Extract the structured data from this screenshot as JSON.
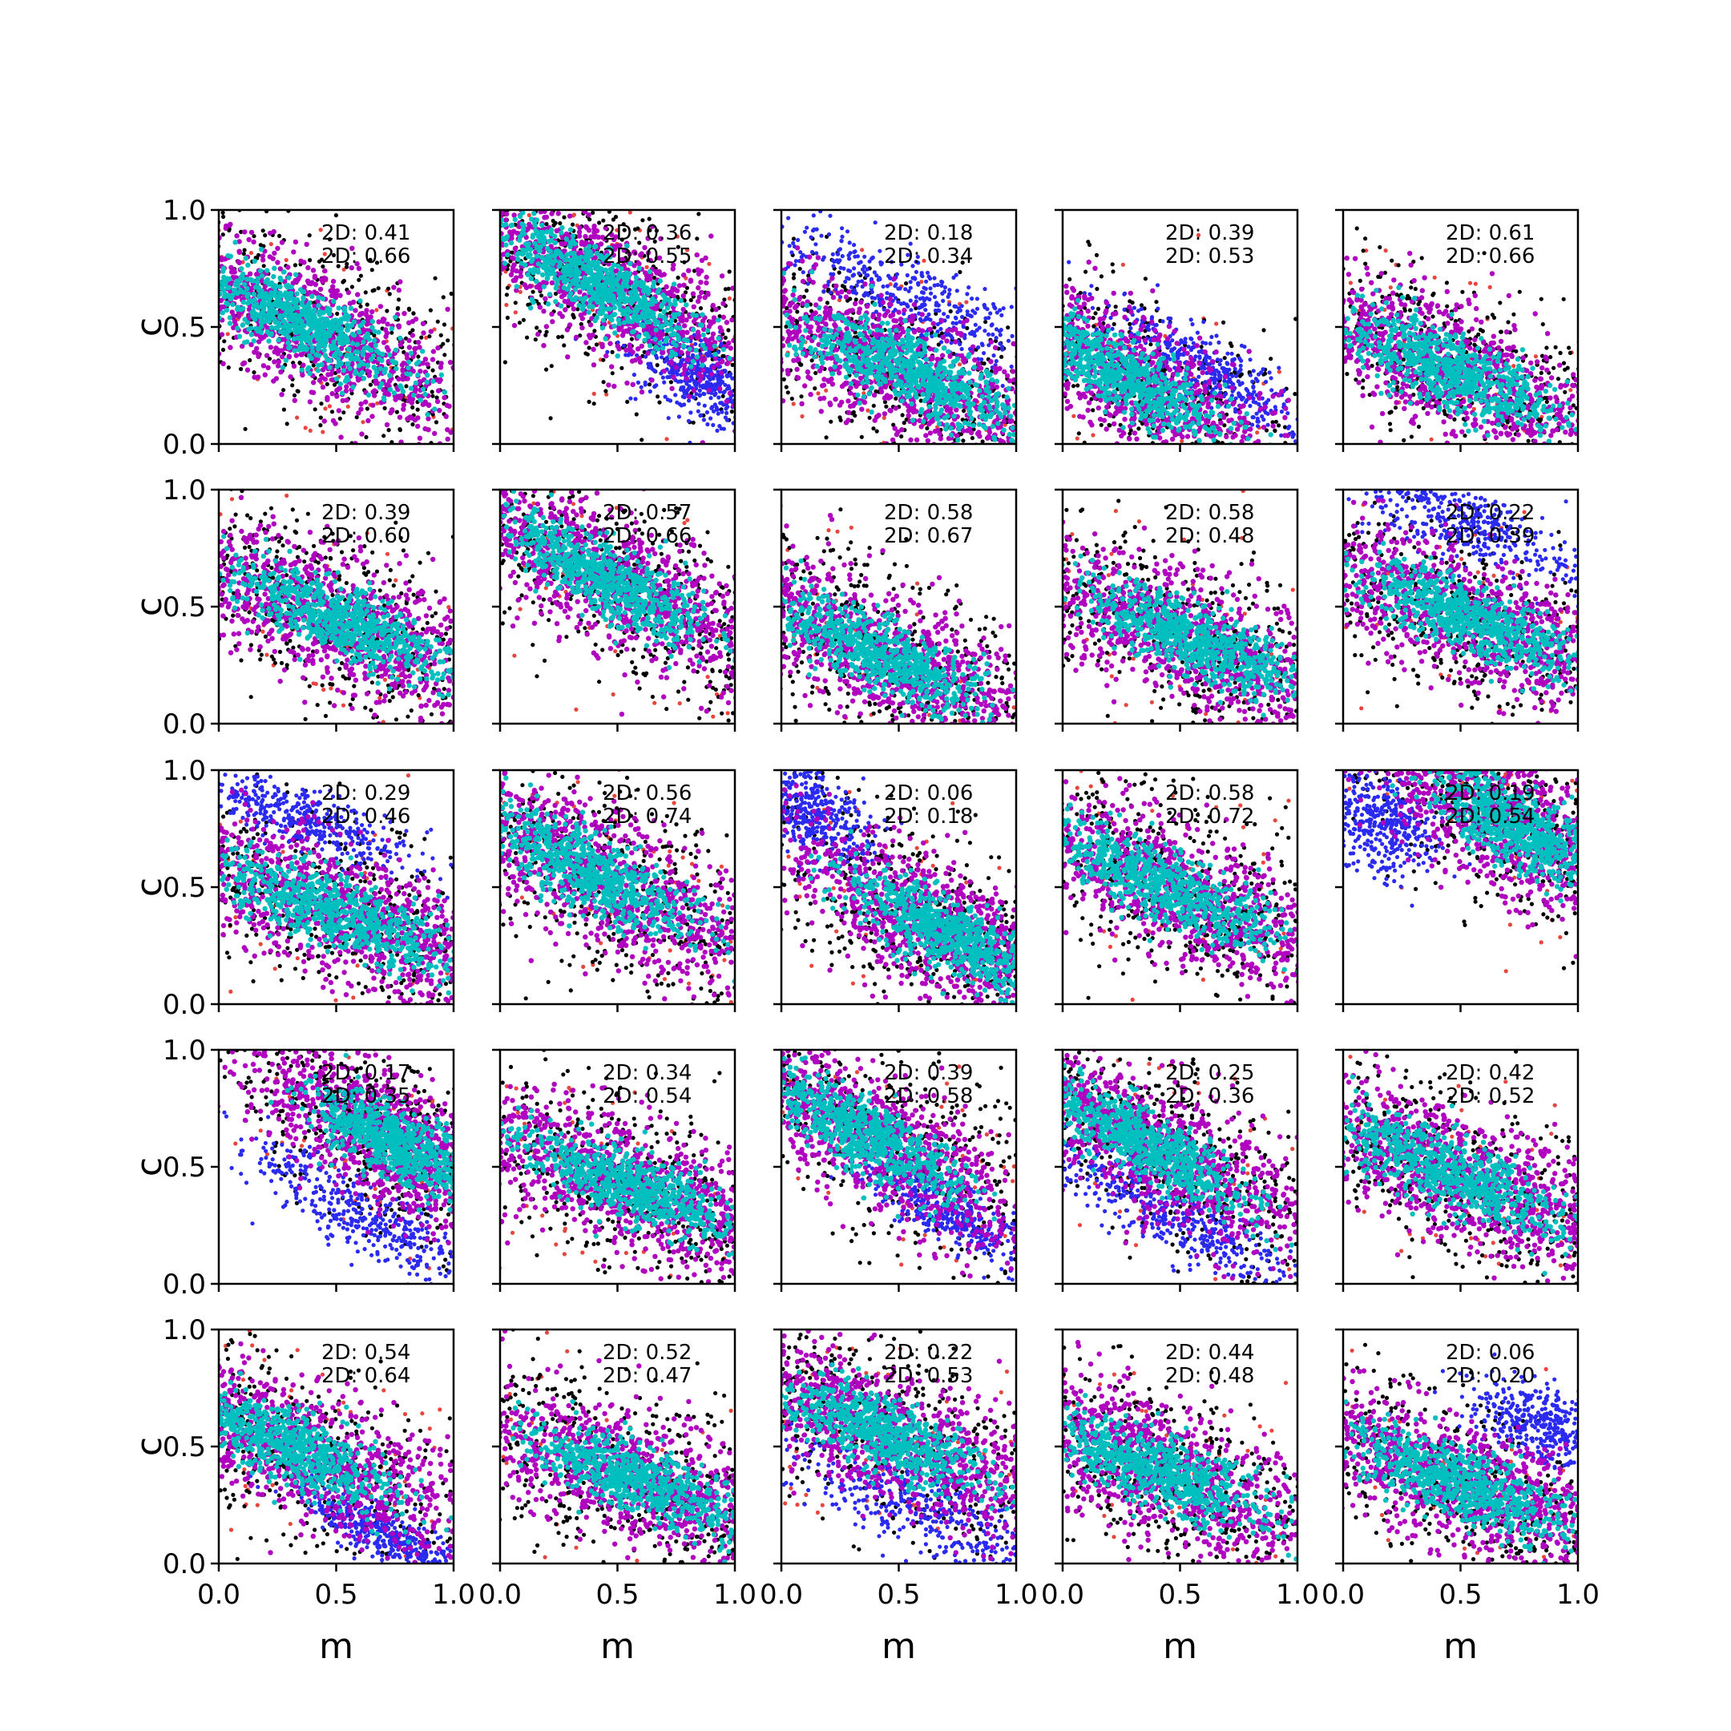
{
  "chart_data": {
    "type": "scatter",
    "layout": "5x5 grid of scatter panels",
    "xlabel": "m",
    "ylabel": "c",
    "xlim": [
      0,
      1
    ],
    "ylim": [
      0,
      1
    ],
    "xticks": [
      "0.0",
      "0.5",
      "1.0"
    ],
    "yticks": [
      "0.0",
      "0.5",
      "1.0"
    ],
    "series_colors": {
      "outlier": "#e8453c",
      "outer": "#000000",
      "alt": "#2a2af0",
      "mid": "#b000c0",
      "core": "#00bfbf"
    },
    "panels": [
      {
        "a1": "2D: 0.41",
        "a2": "2D: 0.66",
        "cx": 0.35,
        "cy": 0.52,
        "ang": -28,
        "sx": 0.62,
        "sy": 0.17,
        "blue": null,
        "plus": null
      },
      {
        "a1": "2D: 0.36",
        "a2": "2D: 0.55",
        "cx": 0.4,
        "cy": 0.7,
        "ang": -30,
        "sx": 0.6,
        "sy": 0.16,
        "blue": {
          "cx": 0.85,
          "cy": 0.28,
          "sx": 0.15,
          "sy": 0.08
        },
        "plus": null
      },
      {
        "a1": "2D: 0.18",
        "a2": "2D: 0.34",
        "cx": 0.55,
        "cy": 0.3,
        "ang": -24,
        "sx": 0.62,
        "sy": 0.17,
        "blue": {
          "cx": 0.55,
          "cy": 0.62,
          "sx": 0.32,
          "sy": 0.08
        },
        "plus": null
      },
      {
        "a1": "2D: 0.39",
        "a2": "2D: 0.53",
        "cx": 0.25,
        "cy": 0.3,
        "ang": -30,
        "sx": 0.6,
        "sy": 0.16,
        "blue": {
          "cx": 0.65,
          "cy": 0.3,
          "sx": 0.26,
          "sy": 0.07
        },
        "plus": null
      },
      {
        "a1": "2D: 0.61",
        "a2": "2D: 0.66",
        "cx": 0.45,
        "cy": 0.32,
        "ang": -24,
        "sx": 0.62,
        "sy": 0.17,
        "blue": null,
        "plus": null
      },
      {
        "a1": "2D: 0.39",
        "a2": "2D: 0.60",
        "cx": 0.5,
        "cy": 0.45,
        "ang": -24,
        "sx": 0.62,
        "sy": 0.17,
        "blue": null,
        "plus": null
      },
      {
        "a1": "2D: 0.57",
        "a2": "2D: 0.66",
        "cx": 0.45,
        "cy": 0.62,
        "ang": -30,
        "sx": 0.6,
        "sy": 0.17,
        "blue": null,
        "plus": null
      },
      {
        "a1": "2D: 0.58",
        "a2": "2D: 0.67",
        "cx": 0.42,
        "cy": 0.3,
        "ang": -26,
        "sx": 0.62,
        "sy": 0.17,
        "blue": null,
        "plus": null
      },
      {
        "a1": "2D: 0.58",
        "a2": "2D: 0.48",
        "cx": 0.55,
        "cy": 0.35,
        "ang": -24,
        "sx": 0.62,
        "sy": 0.17,
        "blue": null,
        "plus": null
      },
      {
        "a1": "2D: 0.22",
        "a2": "2D: 0.39",
        "cx": 0.55,
        "cy": 0.45,
        "ang": -22,
        "sx": 0.62,
        "sy": 0.17,
        "blue": {
          "cx": 0.52,
          "cy": 0.85,
          "sx": 0.3,
          "sy": 0.08
        },
        "plus": null
      },
      {
        "a1": "2D: 0.29",
        "a2": "2D: 0.46",
        "cx": 0.5,
        "cy": 0.4,
        "ang": -22,
        "sx": 0.64,
        "sy": 0.17,
        "blue": {
          "cx": 0.35,
          "cy": 0.8,
          "sx": 0.28,
          "sy": 0.06
        },
        "plus": null
      },
      {
        "a1": "2D: 0.56",
        "a2": "2D: 0.74",
        "cx": 0.4,
        "cy": 0.55,
        "ang": -28,
        "sx": 0.6,
        "sy": 0.17,
        "blue": null,
        "plus": null
      },
      {
        "a1": "2D: 0.06",
        "a2": "2D: 0.18",
        "cx": 0.7,
        "cy": 0.3,
        "ang": -30,
        "sx": 0.55,
        "sy": 0.17,
        "blue": {
          "cx": 0.12,
          "cy": 0.82,
          "sx": 0.15,
          "sy": 0.08
        },
        "plus": {
          "m": 0.63,
          "c": 0.4
        }
      },
      {
        "a1": "2D: 0.58",
        "a2": "2D: 0.72",
        "cx": 0.45,
        "cy": 0.5,
        "ang": -26,
        "sx": 0.62,
        "sy": 0.17,
        "blue": null,
        "plus": null
      },
      {
        "a1": "2D: 0.19",
        "a2": "2D: 0.54",
        "cx": 0.75,
        "cy": 0.75,
        "ang": -30,
        "sx": 0.55,
        "sy": 0.17,
        "blue": {
          "cx": 0.15,
          "cy": 0.78,
          "sx": 0.15,
          "sy": 0.1
        },
        "plus": null
      },
      {
        "a1": "2D: 0.17",
        "a2": "2D: 0.35",
        "cx": 0.75,
        "cy": 0.6,
        "ang": -30,
        "sx": 0.45,
        "sy": 0.16,
        "blue": {
          "cx": 0.6,
          "cy": 0.3,
          "sx": 0.3,
          "sy": 0.08
        },
        "plus": {
          "m": 0.58,
          "c": 0.7
        }
      },
      {
        "a1": "2D: 0.34",
        "a2": "2D: 0.54",
        "cx": 0.55,
        "cy": 0.42,
        "ang": -22,
        "sx": 0.62,
        "sy": 0.17,
        "blue": null,
        "plus": null
      },
      {
        "a1": "2D: 0.39",
        "a2": "2D: 0.58",
        "cx": 0.35,
        "cy": 0.65,
        "ang": -30,
        "sx": 0.6,
        "sy": 0.17,
        "blue": {
          "cx": 0.72,
          "cy": 0.3,
          "sx": 0.22,
          "sy": 0.06
        },
        "plus": {
          "m": 0.3,
          "c": 0.55
        }
      },
      {
        "a1": "2D: 0.25",
        "a2": "2D: 0.36",
        "cx": 0.35,
        "cy": 0.6,
        "ang": -30,
        "sx": 0.6,
        "sy": 0.17,
        "blue": {
          "cx": 0.45,
          "cy": 0.3,
          "sx": 0.3,
          "sy": 0.07
        },
        "plus": {
          "m": 0.55,
          "c": 0.43
        }
      },
      {
        "a1": "2D: 0.42",
        "a2": "2D: 0.52",
        "cx": 0.45,
        "cy": 0.48,
        "ang": -24,
        "sx": 0.62,
        "sy": 0.17,
        "blue": null,
        "plus": null
      },
      {
        "a1": "2D: 0.54",
        "a2": "2D: 0.64",
        "cx": 0.3,
        "cy": 0.5,
        "ang": -26,
        "sx": 0.62,
        "sy": 0.17,
        "blue": {
          "cx": 0.7,
          "cy": 0.12,
          "sx": 0.2,
          "sy": 0.05
        },
        "plus": null
      },
      {
        "a1": "2D: 0.52",
        "a2": "2D: 0.47",
        "cx": 0.6,
        "cy": 0.35,
        "ang": -22,
        "sx": 0.62,
        "sy": 0.17,
        "blue": null,
        "plus": null
      },
      {
        "a1": "2D: 0.22",
        "a2": "2D: 0.53",
        "cx": 0.45,
        "cy": 0.55,
        "ang": -24,
        "sx": 0.62,
        "sy": 0.17,
        "blue": {
          "cx": 0.62,
          "cy": 0.22,
          "sx": 0.32,
          "sy": 0.08
        },
        "plus": null
      },
      {
        "a1": "2D: 0.44",
        "a2": "2D: 0.48",
        "cx": 0.4,
        "cy": 0.4,
        "ang": -24,
        "sx": 0.62,
        "sy": 0.17,
        "blue": null,
        "plus": null
      },
      {
        "a1": "2D: 0.06",
        "a2": "2D: 0.20",
        "cx": 0.5,
        "cy": 0.35,
        "ang": -22,
        "sx": 0.62,
        "sy": 0.17,
        "blue": {
          "cx": 0.85,
          "cy": 0.6,
          "sx": 0.16,
          "sy": 0.08
        },
        "plus": null
      }
    ]
  }
}
